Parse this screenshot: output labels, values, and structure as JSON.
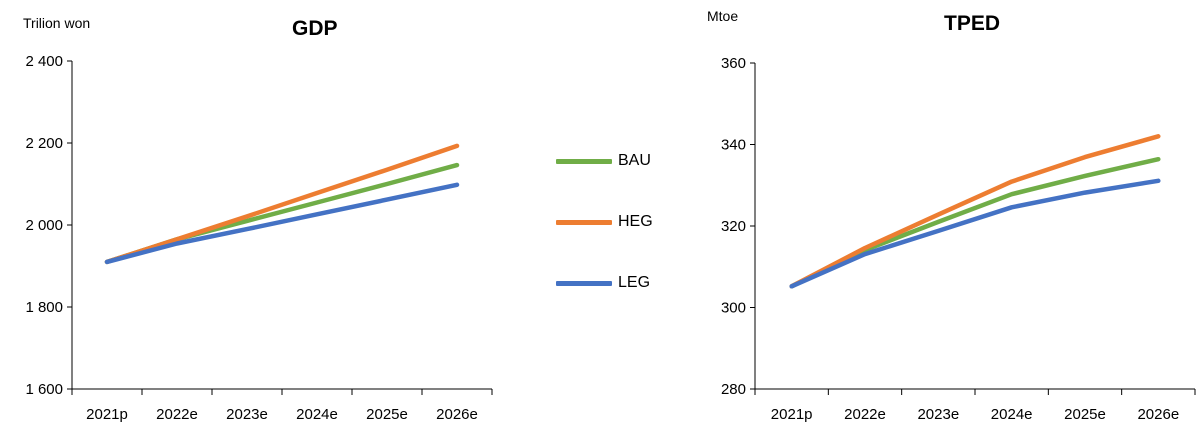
{
  "chart_data": [
    {
      "type": "line",
      "title": "GDP",
      "ylabel": "Trilion won",
      "ylim": [
        1600,
        2400
      ],
      "yticks": [
        "1 600",
        "1 800",
        "2 000",
        "2 200",
        "2 400"
      ],
      "categories": [
        "2021p",
        "2022e",
        "2023e",
        "2024e",
        "2025e",
        "2026e"
      ],
      "series": [
        {
          "name": "BAU",
          "color": "#70AD47",
          "values": [
            1910,
            1965,
            2010,
            2055,
            2100,
            2146
          ]
        },
        {
          "name": "HEG",
          "color": "#ED7D31",
          "values": [
            1910,
            1965,
            2021,
            2078,
            2135,
            2193
          ]
        },
        {
          "name": "LEG",
          "color": "#4472C4",
          "values": [
            1910,
            1955,
            1990,
            2026,
            2062,
            2098
          ]
        }
      ]
    },
    {
      "type": "line",
      "title": "TPED",
      "ylabel": "Mtoe",
      "ylim": [
        280,
        360
      ],
      "yticks": [
        "280",
        "300",
        "320",
        "340",
        "360"
      ],
      "categories": [
        "2021p",
        "2022e",
        "2023e",
        "2024e",
        "2025e",
        "2026e"
      ],
      "series": [
        {
          "name": "BAU",
          "color": "#70AD47",
          "values": [
            305.2,
            314.1,
            321.0,
            327.8,
            332.3,
            336.4
          ]
        },
        {
          "name": "HEG",
          "color": "#ED7D31",
          "values": [
            305.2,
            314.6,
            322.8,
            330.9,
            336.9,
            342.0
          ]
        },
        {
          "name": "LEG",
          "color": "#4472C4",
          "values": [
            305.2,
            313.1,
            318.8,
            324.6,
            328.2,
            331.1
          ]
        }
      ]
    }
  ],
  "legend": [
    {
      "label": "BAU",
      "color": "#70AD47"
    },
    {
      "label": "HEG",
      "color": "#ED7D31"
    },
    {
      "label": "LEG",
      "color": "#4472C4"
    }
  ]
}
